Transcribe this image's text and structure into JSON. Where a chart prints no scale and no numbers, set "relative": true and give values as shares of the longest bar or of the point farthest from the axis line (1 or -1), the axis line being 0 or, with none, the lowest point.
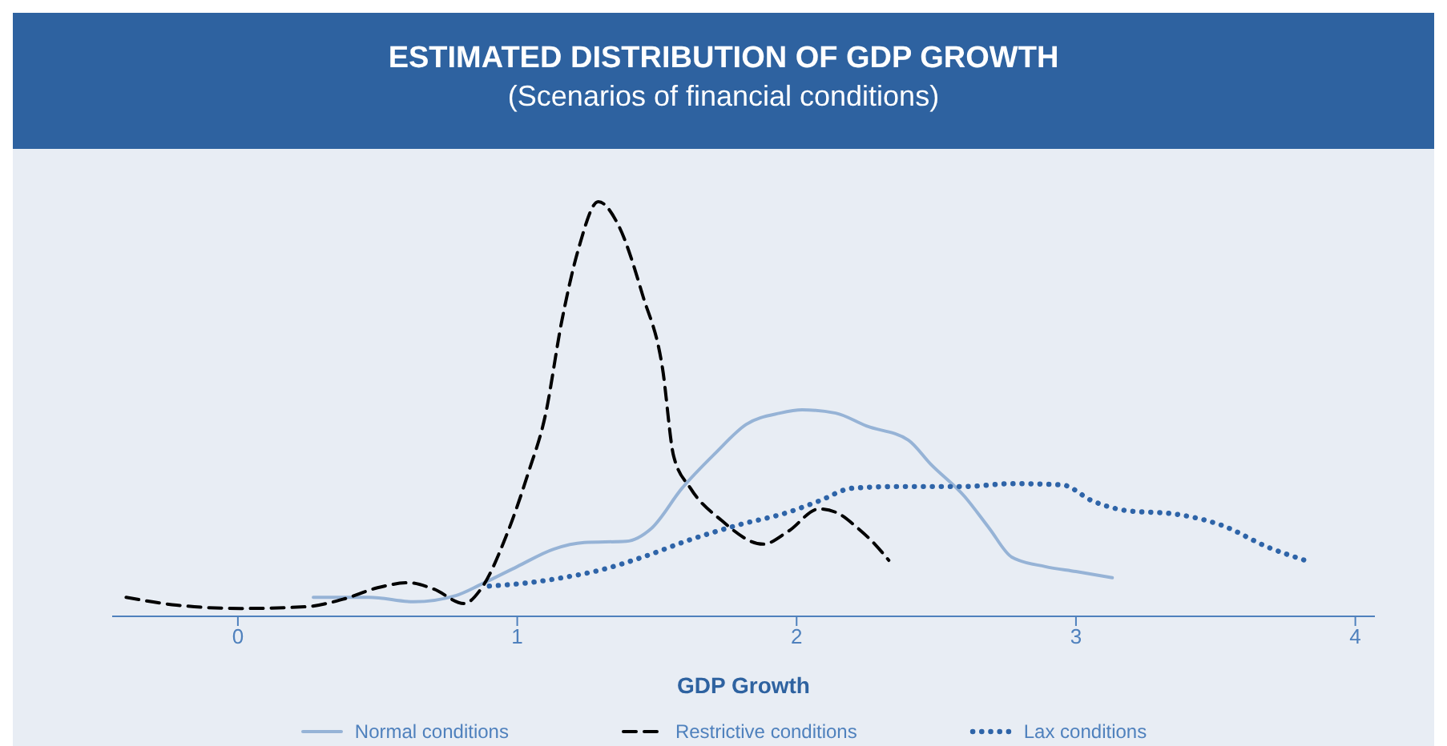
{
  "chart_data": {
    "type": "line",
    "title": "ESTIMATED DISTRIBUTION OF GDP GROWTH",
    "subtitle": "(Scenarios of financial conditions)",
    "xlabel": "GDP Growth",
    "relative": true,
    "xlim": [
      -0.45,
      4.07
    ],
    "xticks": [
      0,
      1,
      2,
      3,
      4
    ],
    "grid": false,
    "legend": "bottom",
    "marker": "none",
    "series": [
      {
        "name": "Normal conditions",
        "color": "#96b3d6",
        "line_style": "solid",
        "x": [
          0.27,
          0.47,
          0.63,
          0.78,
          0.87,
          1.0,
          1.13,
          1.24,
          1.39,
          1.48,
          1.59,
          1.71,
          1.82,
          1.94,
          2.02,
          2.14,
          2.25,
          2.4,
          2.48,
          2.6,
          2.69,
          2.77,
          2.89,
          3.0,
          3.13
        ],
        "values": [
          0.046,
          0.046,
          0.035,
          0.05,
          0.077,
          0.12,
          0.162,
          0.178,
          0.181,
          0.212,
          0.309,
          0.394,
          0.463,
          0.49,
          0.498,
          0.49,
          0.459,
          0.425,
          0.367,
          0.29,
          0.212,
          0.143,
          0.12,
          0.108,
          0.093
        ]
      },
      {
        "name": "Restrictive conditions",
        "color": "#000000",
        "line_style": "dashed",
        "x": [
          -0.4,
          -0.22,
          0.01,
          0.24,
          0.38,
          0.5,
          0.61,
          0.7,
          0.81,
          0.87,
          0.96,
          1.04,
          1.1,
          1.16,
          1.22,
          1.29,
          1.36,
          1.45,
          1.52,
          1.56,
          1.62,
          1.73,
          1.88,
          1.97,
          2.08,
          2.14,
          2.22,
          2.28,
          2.33
        ],
        "values": [
          0.046,
          0.027,
          0.019,
          0.023,
          0.042,
          0.069,
          0.081,
          0.066,
          0.031,
          0.066,
          0.193,
          0.347,
          0.483,
          0.714,
          0.888,
          1,
          0.946,
          0.772,
          0.598,
          0.386,
          0.309,
          0.232,
          0.174,
          0.205,
          0.259,
          0.251,
          0.212,
          0.174,
          0.135
        ]
      },
      {
        "name": "Lax conditions",
        "color": "#2e64a8",
        "line_style": "dotted",
        "x": [
          0.9,
          1.04,
          1.16,
          1.3,
          1.45,
          1.62,
          1.79,
          1.97,
          2.08,
          2.2,
          2.37,
          2.6,
          2.77,
          2.95,
          3.06,
          3.18,
          3.35,
          3.52,
          3.69,
          3.82
        ],
        "values": [
          0.073,
          0.081,
          0.093,
          0.112,
          0.143,
          0.185,
          0.22,
          0.251,
          0.278,
          0.309,
          0.313,
          0.313,
          0.32,
          0.317,
          0.278,
          0.255,
          0.247,
          0.22,
          0.166,
          0.135
        ]
      }
    ]
  }
}
